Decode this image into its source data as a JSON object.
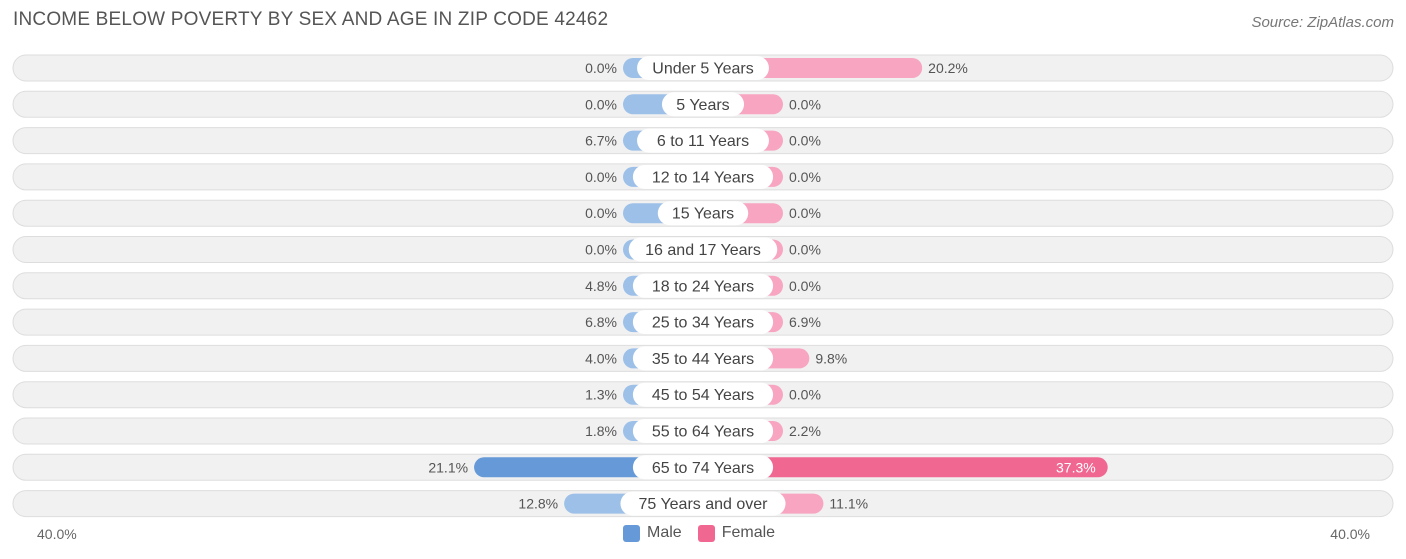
{
  "title": "INCOME BELOW POVERTY BY SEX AND AGE IN ZIP CODE 42462",
  "source": "Source: ZipAtlas.com",
  "colors": {
    "male": "#9dc0e8",
    "male_strong": "#6699d8",
    "female": "#f7a5c0",
    "female_strong": "#f06892",
    "row_bg": "#f1f1f1",
    "row_border": "#dddddd"
  },
  "chart_data": {
    "type": "bar",
    "orientation": "horizontal-diverging",
    "categories": [
      "Under 5 Years",
      "5 Years",
      "6 to 11 Years",
      "12 to 14 Years",
      "15 Years",
      "16 and 17 Years",
      "18 to 24 Years",
      "25 to 34 Years",
      "35 to 44 Years",
      "45 to 54 Years",
      "55 to 64 Years",
      "65 to 74 Years",
      "75 Years and over"
    ],
    "series": [
      {
        "name": "Male",
        "values": [
          0.0,
          0.0,
          6.7,
          0.0,
          0.0,
          0.0,
          4.8,
          6.8,
          4.0,
          1.3,
          1.8,
          21.1,
          12.8
        ]
      },
      {
        "name": "Female",
        "values": [
          20.2,
          0.0,
          0.0,
          0.0,
          0.0,
          0.0,
          0.0,
          6.9,
          9.8,
          0.0,
          2.2,
          37.3,
          11.1
        ]
      }
    ],
    "value_labels": {
      "male": [
        "0.0%",
        "0.0%",
        "6.7%",
        "0.0%",
        "0.0%",
        "0.0%",
        "4.8%",
        "6.8%",
        "4.0%",
        "1.3%",
        "1.8%",
        "21.1%",
        "12.8%"
      ],
      "female": [
        "20.2%",
        "0.0%",
        "0.0%",
        "0.0%",
        "0.0%",
        "0.0%",
        "0.0%",
        "6.9%",
        "9.8%",
        "0.0%",
        "2.2%",
        "37.3%",
        "11.1%"
      ]
    },
    "xlim": [
      -40,
      40
    ],
    "axis_labels": {
      "left": "40.0%",
      "right": "40.0%"
    },
    "legend": {
      "items": [
        "Male",
        "Female"
      ],
      "position": "bottom-center"
    }
  }
}
